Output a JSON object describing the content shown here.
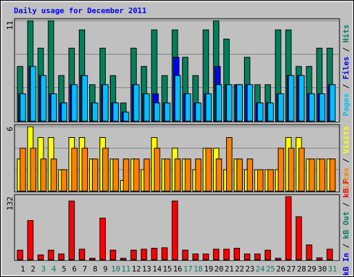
{
  "chart_data": {
    "type": "bar",
    "title": "Daily usage for December 2011",
    "legend_separator": " / ",
    "categories": [
      "1",
      "2",
      "3",
      "4",
      "5",
      "6",
      "7",
      "8",
      "9",
      "10",
      "11",
      "12",
      "13",
      "14",
      "15",
      "16",
      "17",
      "18",
      "19",
      "20",
      "21",
      "22",
      "23",
      "24",
      "25",
      "26",
      "27",
      "28",
      "29",
      "30",
      "31"
    ],
    "category_colors": [
      "#000000",
      "#000000",
      "#00805c",
      "#00805c",
      "#000000",
      "#000000",
      "#000000",
      "#000000",
      "#000000",
      "#00805c",
      "#00805c",
      "#000000",
      "#000000",
      "#000000",
      "#000000",
      "#000000",
      "#00805c",
      "#00805c",
      "#000000",
      "#000000",
      "#000000",
      "#000000",
      "#000000",
      "#00805c",
      "#00805c",
      "#000000",
      "#000000",
      "#000000",
      "#000000",
      "#000000",
      "#00805c"
    ],
    "panels": [
      {
        "ylim": [
          0,
          11
        ],
        "yticks": [
          11
        ],
        "grid": true,
        "series": [
          {
            "name": "Hits",
            "color": "#00805c",
            "values": [
              6,
              11,
              8,
              11,
              5,
              8,
              10,
              4,
              8,
              5,
              2,
              8,
              6,
              10,
              5,
              10,
              7,
              5,
              10,
              11,
              9,
              4,
              7,
              4,
              4,
              10,
              10,
              6,
              6,
              8,
              8
            ]
          },
          {
            "name": "Files",
            "color": "#0000ff",
            "values": [
              3,
              6,
              5,
              3,
              2,
              4,
              5,
              2,
              4,
              2,
              1,
              4,
              3,
              3,
              2,
              7,
              3,
              2,
              3,
              6,
              4,
              4,
              4,
              2,
              2,
              3,
              5,
              5,
              3,
              3,
              4
            ]
          },
          {
            "name": "Pages",
            "color": "#00c0ff",
            "values": [
              3,
              6,
              5,
              3,
              2,
              4,
              5,
              2,
              4,
              2,
              1,
              4,
              3,
              2,
              2,
              5,
              3,
              2,
              3,
              4,
              4,
              4,
              4,
              2,
              2,
              3,
              5,
              5,
              3,
              3,
              4
            ]
          }
        ]
      },
      {
        "ylim": [
          0,
          6
        ],
        "yticks": [
          6
        ],
        "grid": true,
        "series": [
          {
            "name": "Visits",
            "color": "#ffff00",
            "values": [
              3,
              6,
              5,
              5,
              2,
              5,
              5,
              3,
              5,
              3,
              1,
              3,
              2,
              5,
              3,
              4,
              3,
              2,
              4,
              4,
              2,
              3,
              2,
              2,
              2,
              2,
              5,
              5,
              3,
              3,
              3
            ]
          },
          {
            "name": "Sites",
            "color": "#ff8000",
            "values": [
              4,
              4,
              3,
              3,
              2,
              4,
              4,
              3,
              4,
              3,
              3,
              3,
              3,
              4,
              3,
              3,
              3,
              3,
              4,
              3,
              5,
              3,
              3,
              2,
              2,
              4,
              4,
              4,
              3,
              3,
              3
            ]
          }
        ]
      },
      {
        "ylim": [
          0,
          132
        ],
        "yticks": [
          132
        ],
        "grid": false,
        "series": [
          {
            "name": "kB F",
            "color": "#ff0000",
            "values": [
              20,
              82,
              10,
              20,
              12,
              123,
              22,
              3,
              87,
              20,
              3,
              20,
              22,
              24,
              25,
              123,
              20,
              12,
              12,
              22,
              22,
              24,
              12,
              12,
              20,
              3,
              132,
              90,
              31,
              4,
              22
            ]
          },
          {
            "name": "kB Out",
            "color": "#00805c"
          },
          {
            "name": "kB In",
            "color": "#0000ff"
          }
        ]
      }
    ]
  }
}
